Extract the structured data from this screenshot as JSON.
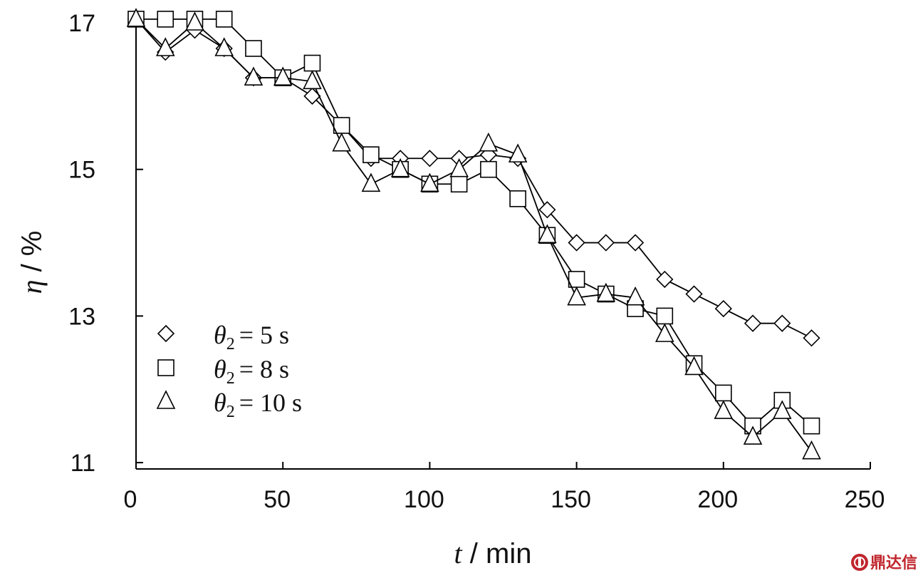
{
  "chart_data": {
    "type": "line",
    "title": "",
    "xlabel_var": "t",
    "xlabel_unit": " / min",
    "ylabel_var": "η",
    "ylabel_unit": " / %",
    "xlim": [
      0,
      250
    ],
    "ylim": [
      11,
      17
    ],
    "xticks": [
      0,
      50,
      100,
      150,
      200,
      250
    ],
    "yticks": [
      11,
      13,
      15,
      17
    ],
    "grid": false,
    "legend_position": "bottom-left",
    "x": [
      0,
      10,
      20,
      30,
      40,
      50,
      60,
      70,
      80,
      90,
      100,
      110,
      120,
      130,
      140,
      150,
      160,
      170,
      180,
      190,
      200,
      210,
      220,
      230
    ],
    "series": [
      {
        "name": "θ2 = 5 s",
        "legend_var": "θ",
        "legend_sub": "2",
        "legend_value": "= 5 s",
        "marker": "diamond",
        "values": [
          17.05,
          16.6,
          16.9,
          16.65,
          16.25,
          16.25,
          16.0,
          15.6,
          15.15,
          15.15,
          15.15,
          15.15,
          15.2,
          15.15,
          14.45,
          14.0,
          14.0,
          14.0,
          13.5,
          13.3,
          13.1,
          12.9,
          12.9,
          12.7
        ]
      },
      {
        "name": "θ2 = 8 s",
        "legend_var": "θ",
        "legend_sub": "2",
        "legend_value": "= 8 s",
        "marker": "square",
        "values": [
          17.05,
          17.05,
          17.05,
          17.05,
          16.65,
          16.25,
          16.45,
          15.6,
          15.2,
          15.0,
          14.8,
          14.8,
          15.0,
          14.6,
          14.1,
          13.5,
          13.3,
          13.1,
          13.0,
          12.35,
          11.95,
          11.5,
          11.85,
          11.5
        ]
      },
      {
        "name": "θ2 = 10 s",
        "legend_var": "θ",
        "legend_sub": "2",
        "legend_value": "= 10 s",
        "marker": "triangle",
        "values": [
          17.05,
          16.65,
          17.0,
          16.65,
          16.25,
          16.25,
          16.2,
          15.35,
          14.8,
          15.0,
          14.8,
          15.0,
          15.35,
          15.2,
          14.1,
          13.25,
          13.3,
          13.25,
          12.75,
          12.3,
          11.7,
          11.35,
          11.7,
          11.15
        ]
      }
    ]
  },
  "watermark": {
    "icon": "seal-icon",
    "text": "鼎达信"
  }
}
